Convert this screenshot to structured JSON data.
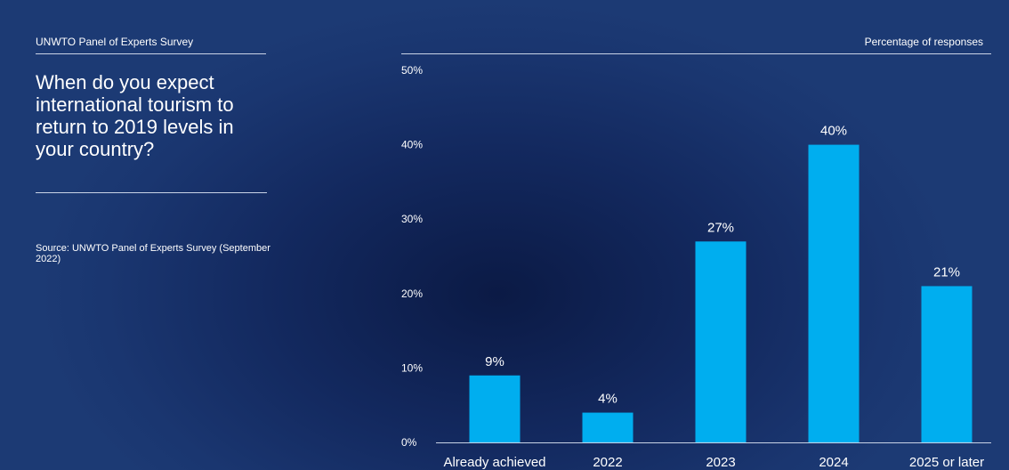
{
  "header": {
    "survey_label": "UNWTO Panel of Experts Survey",
    "measure_label": "Percentage of responses"
  },
  "question": "When do you expect international tourism to return to 2019 levels in your country?",
  "source": "Source: UNWTO Panel of Experts Survey (September 2022)",
  "colors": {
    "bar": "#00aeef",
    "text": "#ffffff",
    "rule": "#c9d3e6"
  },
  "chart_data": {
    "type": "bar",
    "title": "When do you expect international tourism to return to 2019 levels in your country?",
    "ylabel": "Percentage of responses",
    "categories": [
      "Already achieved",
      "2022",
      "2023",
      "2024",
      "2025 or later"
    ],
    "values": [
      9,
      4,
      27,
      40,
      21
    ],
    "data_labels": [
      "9%",
      "4%",
      "27%",
      "40%",
      "21%"
    ],
    "ylim": [
      0,
      50
    ],
    "yticks": [
      0,
      10,
      20,
      30,
      40,
      50
    ],
    "ytick_labels": [
      "0%",
      "10%",
      "20%",
      "30%",
      "40%",
      "50%"
    ],
    "grid": false,
    "legend": "none"
  }
}
